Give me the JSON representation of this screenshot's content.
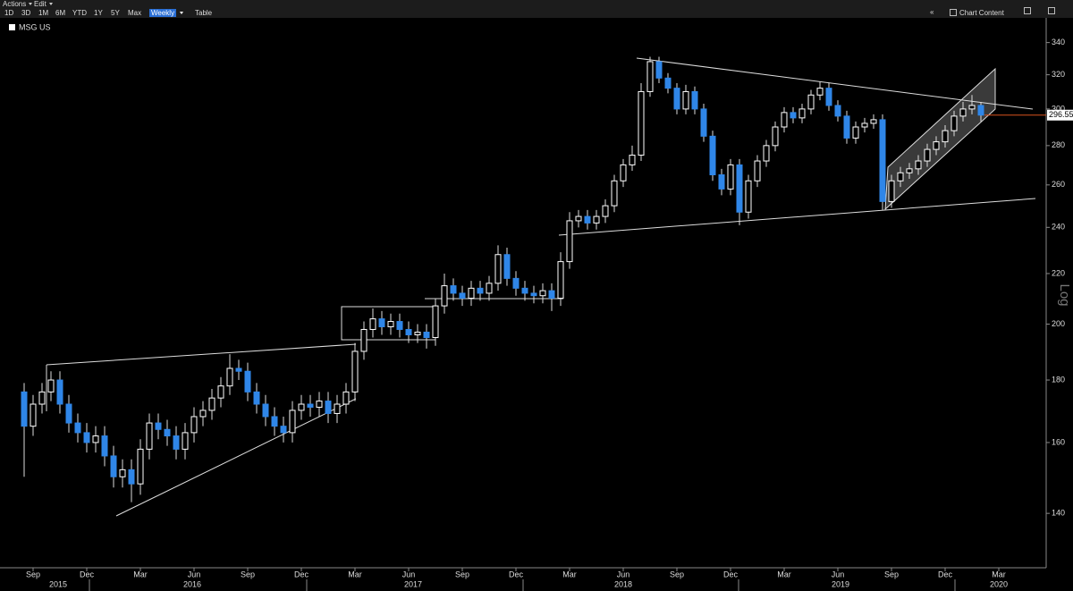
{
  "toolbar": {
    "menus": [
      "Actions",
      "Edit"
    ],
    "buttons": [
      "1D",
      "3D",
      "1M",
      "6M",
      "YTD",
      "1Y",
      "5Y",
      "Max"
    ],
    "selected": "Weekly",
    "table": "Table",
    "chart_content": "Chart Content"
  },
  "chart_data": {
    "type": "candlestick",
    "series_name": "MSG US",
    "y_axis_label": "Log",
    "log_scale": true,
    "up_color": "#ffffff",
    "down_color": "#2f86e8",
    "last_price_color": "#d9531e",
    "categories": [
      null,
      "Sep",
      null,
      null,
      null,
      null,
      null,
      "Dec",
      null,
      null,
      null,
      null,
      null,
      "Mar",
      null,
      null,
      null,
      null,
      null,
      "Jun",
      null,
      null,
      null,
      null,
      null,
      "Sep",
      null,
      null,
      null,
      null,
      null,
      "Dec",
      null,
      null,
      null,
      null,
      null,
      "Mar",
      null,
      null,
      null,
      null,
      null,
      "Jun",
      null,
      null,
      null,
      null,
      null,
      "Sep",
      null,
      null,
      null,
      null,
      null,
      "Dec",
      null,
      null,
      null,
      null,
      null,
      "Mar",
      null,
      null,
      null,
      null,
      null,
      "Jun",
      null,
      null,
      null,
      null,
      null,
      "Sep",
      null,
      null,
      null,
      null,
      null,
      "Dec",
      null,
      null,
      null,
      null,
      null,
      "Mar",
      null,
      null,
      null,
      null,
      null,
      "Jun",
      null,
      null,
      null,
      null,
      null,
      "Sep",
      null,
      null,
      null,
      null,
      null,
      "Dec",
      null,
      null,
      null,
      null,
      null,
      "Mar",
      null,
      null,
      null,
      null
    ],
    "years": [
      "2015",
      "2016",
      "2017",
      "2018",
      "2019",
      "2020"
    ],
    "open": [
      176,
      165,
      172,
      176,
      180,
      172,
      166,
      163,
      160,
      162,
      156,
      150,
      152,
      148,
      158,
      166,
      164,
      162,
      158,
      163,
      168,
      170,
      174,
      178,
      184,
      183,
      176,
      172,
      168,
      165,
      163,
      170,
      172,
      171,
      173,
      169,
      172,
      176,
      190,
      198,
      202,
      199,
      201,
      198,
      196,
      197,
      195,
      207,
      215,
      212,
      210,
      214,
      212,
      216,
      228,
      218,
      214,
      212,
      211,
      213,
      210,
      225,
      243,
      245,
      242,
      245,
      250,
      262,
      270,
      275,
      310,
      328,
      318,
      312,
      300,
      310,
      300,
      285,
      265,
      258,
      270,
      247,
      262,
      272,
      280,
      290,
      298,
      295,
      300,
      308,
      312,
      302,
      296,
      284,
      290,
      292,
      294,
      252,
      262,
      266,
      268,
      272,
      278,
      282,
      288,
      296,
      300,
      302,
      null,
      null,
      null,
      null,
      null,
      null
    ],
    "high": [
      179,
      175,
      179,
      183,
      183,
      175,
      169,
      166,
      165,
      165,
      159,
      155,
      155,
      161,
      169,
      169,
      167,
      165,
      166,
      171,
      173,
      177,
      181,
      189,
      187,
      186,
      179,
      175,
      171,
      168,
      173,
      175,
      175,
      176,
      176,
      175,
      179,
      193,
      201,
      206,
      205,
      204,
      204,
      201,
      200,
      200,
      210,
      220,
      218,
      215,
      217,
      217,
      219,
      232,
      231,
      221,
      217,
      215,
      216,
      216,
      229,
      247,
      248,
      248,
      248,
      253,
      265,
      273,
      280,
      315,
      331,
      331,
      321,
      315,
      314,
      313,
      303,
      288,
      268,
      273,
      273,
      265,
      275,
      283,
      293,
      301,
      301,
      303,
      311,
      316,
      315,
      305,
      299,
      293,
      295,
      297,
      297,
      265,
      269,
      271,
      275,
      281,
      285,
      291,
      299,
      304,
      308,
      304,
      null,
      null,
      null,
      null,
      null,
      null
    ],
    "low": [
      150,
      162,
      169,
      173,
      169,
      163,
      160,
      157,
      157,
      153,
      147,
      147,
      143,
      145,
      155,
      161,
      159,
      155,
      155,
      160,
      165,
      167,
      171,
      175,
      180,
      173,
      169,
      165,
      162,
      160,
      160,
      167,
      168,
      168,
      166,
      166,
      169,
      173,
      187,
      195,
      196,
      196,
      195,
      193,
      193,
      191,
      192,
      204,
      209,
      207,
      207,
      209,
      209,
      213,
      215,
      211,
      209,
      208,
      208,
      205,
      207,
      222,
      240,
      239,
      239,
      242,
      247,
      259,
      267,
      272,
      307,
      315,
      309,
      297,
      297,
      297,
      282,
      262,
      255,
      255,
      241,
      244,
      259,
      269,
      277,
      287,
      292,
      292,
      297,
      305,
      299,
      293,
      281,
      281,
      287,
      289,
      248,
      249,
      259,
      263,
      265,
      269,
      275,
      279,
      285,
      293,
      297,
      293,
      null,
      null,
      null,
      null,
      null,
      null
    ],
    "close": [
      165,
      172,
      176,
      180,
      172,
      166,
      163,
      160,
      162,
      156,
      150,
      152,
      148,
      158,
      166,
      164,
      162,
      158,
      163,
      168,
      170,
      174,
      178,
      184,
      183,
      176,
      172,
      168,
      165,
      163,
      170,
      172,
      171,
      173,
      169,
      172,
      176,
      190,
      198,
      202,
      199,
      201,
      198,
      196,
      197,
      195,
      207,
      215,
      212,
      210,
      214,
      212,
      216,
      228,
      218,
      214,
      212,
      211,
      213,
      210,
      225,
      243,
      245,
      242,
      245,
      250,
      262,
      270,
      275,
      310,
      328,
      318,
      312,
      300,
      310,
      300,
      285,
      265,
      258,
      270,
      247,
      262,
      272,
      280,
      290,
      298,
      295,
      300,
      308,
      312,
      302,
      296,
      284,
      290,
      292,
      294,
      252,
      262,
      266,
      268,
      272,
      278,
      282,
      288,
      296,
      300,
      302,
      296.55,
      null,
      null,
      null,
      null,
      null,
      null
    ],
    "ylim": [
      127,
      355
    ],
    "yticks": [
      140,
      160,
      180,
      200,
      220,
      240,
      260,
      280,
      300,
      320,
      340
    ]
  }
}
